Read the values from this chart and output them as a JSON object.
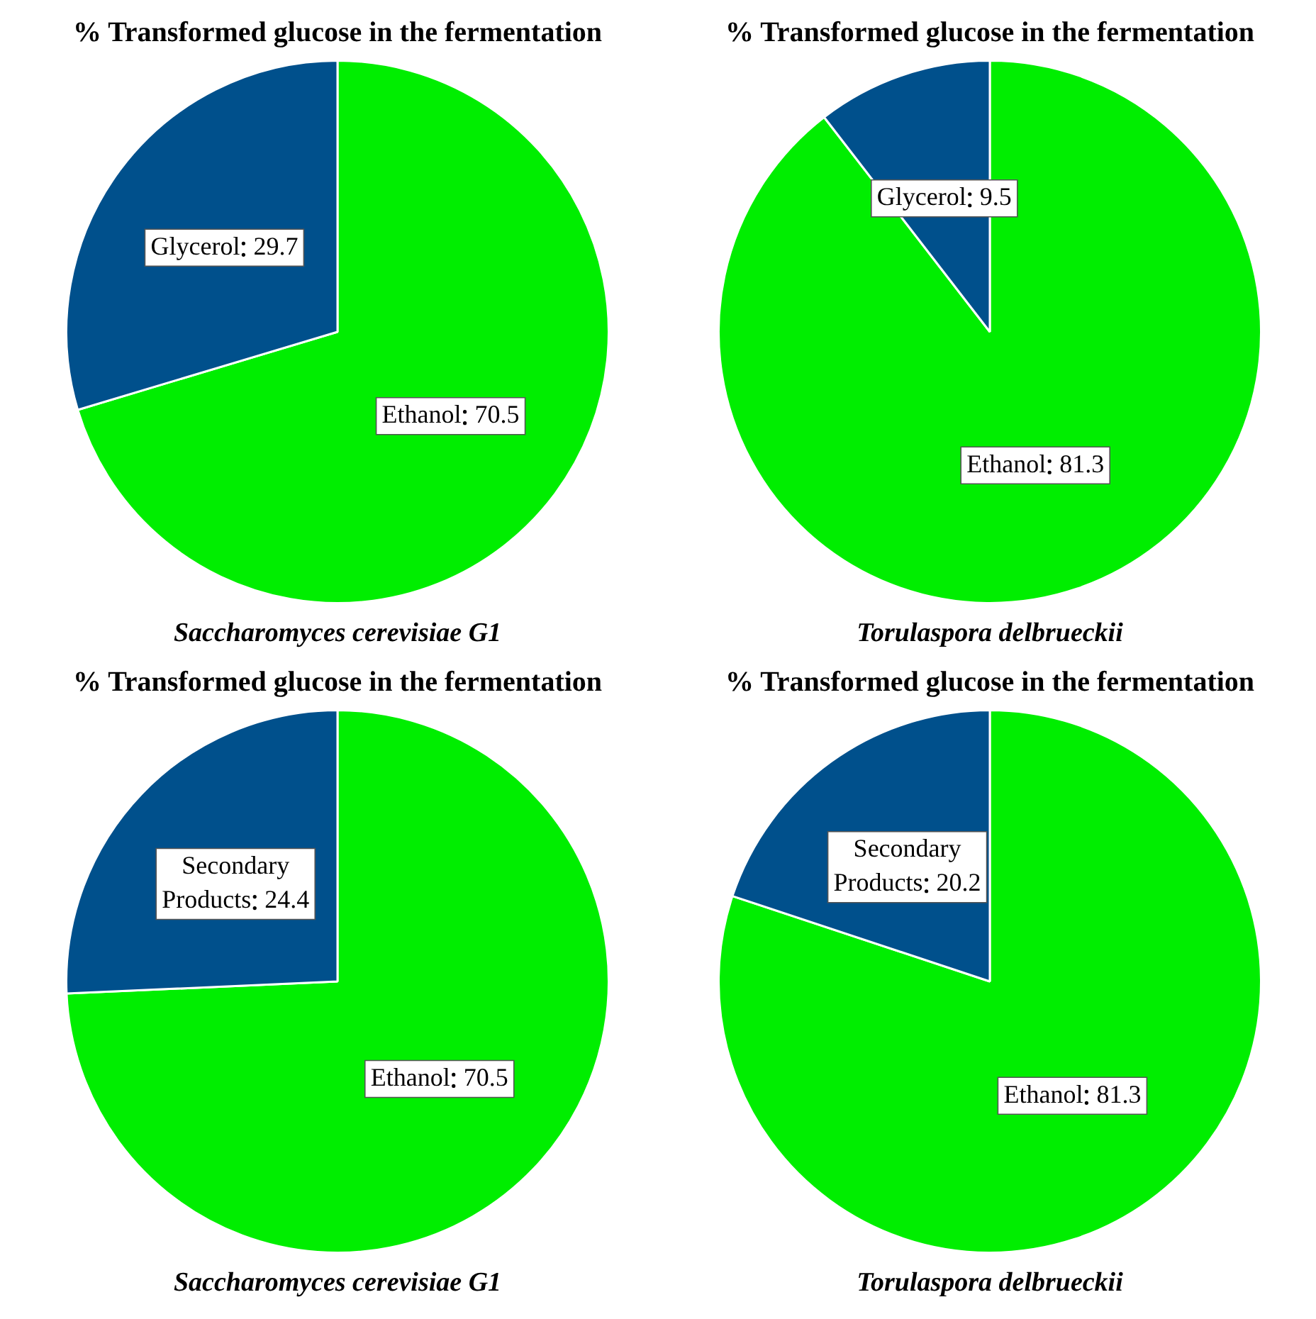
{
  "chart_data": [
    {
      "type": "pie",
      "title": "% Transformed glucose in the fermentation",
      "subtitle": "Saccharomyces cerevisiae G1",
      "categories": [
        "Ethanol",
        "Glycerol"
      ],
      "values": [
        70.5,
        29.7
      ],
      "colors": [
        "#00ee00",
        "#00508c"
      ],
      "data_labels": true,
      "legend": false
    },
    {
      "type": "pie",
      "title": "% Transformed glucose in the fermentation",
      "subtitle": "Torulaspora delbrueckii",
      "categories": [
        "Ethanol",
        "Glycerol"
      ],
      "values": [
        81.3,
        9.5
      ],
      "colors": [
        "#00ee00",
        "#00508c"
      ],
      "data_labels": true,
      "legend": false
    },
    {
      "type": "pie",
      "title": "% Transformed glucose in the fermentation",
      "subtitle": "Saccharomyces cerevisiae G1",
      "categories": [
        "Ethanol",
        "Secondary Products"
      ],
      "values": [
        70.5,
        24.4
      ],
      "colors": [
        "#00ee00",
        "#00508c"
      ],
      "data_labels": true,
      "legend": false
    },
    {
      "type": "pie",
      "title": "% Transformed glucose in the fermentation",
      "subtitle": "Torulaspora delbrueckii",
      "categories": [
        "Ethanol",
        "Secondary Products"
      ],
      "values": [
        81.3,
        20.2
      ],
      "colors": [
        "#00ee00",
        "#00508c"
      ],
      "data_labels": true,
      "legend": false
    }
  ]
}
